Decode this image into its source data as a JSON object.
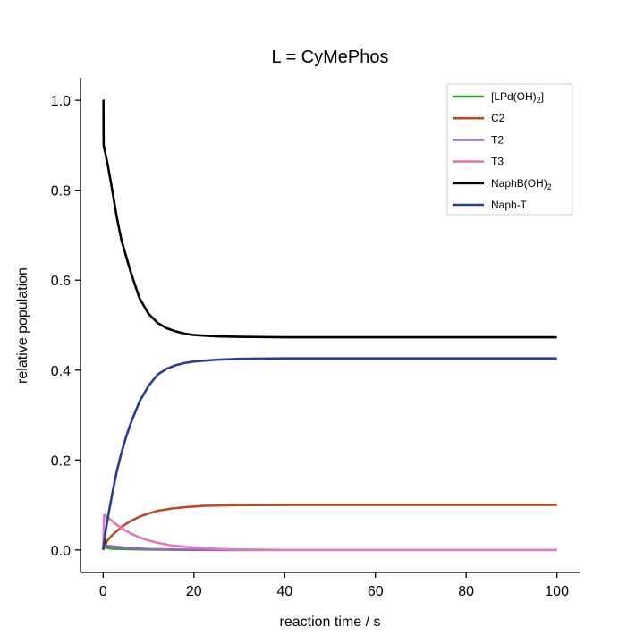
{
  "chart_data": {
    "type": "line",
    "title": "L = CyMePhos",
    "xlabel": "reaction time / s",
    "ylabel": "relative population",
    "xlim": [
      -5,
      105
    ],
    "ylim": [
      -0.05,
      1.05
    ],
    "xticks": [
      0,
      20,
      40,
      60,
      80,
      100
    ],
    "xtick_labels": [
      "0",
      "20",
      "40",
      "60",
      "80",
      "100"
    ],
    "yticks": [
      0.0,
      0.2,
      0.4,
      0.6,
      0.8,
      1.0
    ],
    "ytick_labels": [
      "0.0",
      "0.2",
      "0.4",
      "0.6",
      "0.8",
      "1.0"
    ],
    "grid": false,
    "legend_position": "top-right",
    "series": [
      {
        "name": "[LPd(OH)2]",
        "legend_main": "[LPd(OH)",
        "legend_sub": "2",
        "legend_after": "]",
        "color": "#2ca02c",
        "x": [
          0,
          0.5,
          1,
          2,
          5,
          10,
          20,
          40,
          60,
          80,
          100
        ],
        "y": [
          0.01,
          0.006,
          0.004,
          0.003,
          0.002,
          0.001,
          0.0,
          0.0,
          0.0,
          0.0,
          0.0
        ]
      },
      {
        "name": "C2",
        "legend_main": "C2",
        "legend_sub": "",
        "legend_after": "",
        "color": "#b84c27",
        "x": [
          0,
          0.5,
          1,
          2,
          4,
          6,
          8,
          10,
          12,
          15,
          18,
          22,
          26,
          30,
          40,
          50,
          60,
          80,
          100
        ],
        "y": [
          0.0,
          0.012,
          0.022,
          0.033,
          0.051,
          0.064,
          0.074,
          0.081,
          0.087,
          0.092,
          0.095,
          0.098,
          0.099,
          0.0995,
          0.1,
          0.1,
          0.1,
          0.1,
          0.1
        ]
      },
      {
        "name": "T2",
        "legend_main": "T2",
        "legend_sub": "",
        "legend_after": "",
        "color": "#9467bd",
        "x": [
          0,
          0.3,
          1,
          2,
          4,
          6,
          8,
          10,
          15,
          20,
          30,
          40,
          60,
          80,
          100
        ],
        "y": [
          0.0,
          0.01,
          0.009,
          0.008,
          0.006,
          0.004,
          0.003,
          0.002,
          0.001,
          0.0005,
          0.0,
          0.0,
          0.0,
          0.0,
          0.0
        ]
      },
      {
        "name": "T3",
        "legend_main": "T3",
        "legend_sub": "",
        "legend_after": "",
        "color": "#e377c2",
        "x": [
          0,
          0.2,
          0.5,
          1,
          2,
          3,
          4,
          6,
          8,
          10,
          12,
          15,
          18,
          22,
          26,
          30,
          40,
          60,
          80,
          100
        ],
        "y": [
          0.0,
          0.078,
          0.077,
          0.073,
          0.064,
          0.056,
          0.049,
          0.037,
          0.028,
          0.021,
          0.016,
          0.01,
          0.007,
          0.004,
          0.002,
          0.001,
          0.0,
          0.0,
          0.0,
          0.0
        ]
      },
      {
        "name": "NaphB(OH)2",
        "legend_main": "NaphB(OH)",
        "legend_sub": "2",
        "legend_after": "",
        "color": "#000000",
        "x": [
          0,
          0.05,
          0.1,
          1,
          2,
          3,
          4,
          5,
          6,
          8,
          10,
          12,
          14,
          16,
          18,
          20,
          25,
          30,
          40,
          50,
          60,
          80,
          100
        ],
        "y": [
          1.0,
          1.0,
          0.9,
          0.857,
          0.8,
          0.74,
          0.69,
          0.655,
          0.62,
          0.56,
          0.525,
          0.505,
          0.493,
          0.486,
          0.481,
          0.478,
          0.475,
          0.474,
          0.473,
          0.473,
          0.473,
          0.473,
          0.473
        ]
      },
      {
        "name": "Naph-T",
        "legend_main": "Naph-T",
        "legend_sub": "",
        "legend_after": "",
        "color": "#233f91",
        "x": [
          0,
          0.5,
          1,
          2,
          3,
          4,
          5,
          6,
          8,
          10,
          12,
          14,
          16,
          18,
          20,
          25,
          30,
          40,
          50,
          60,
          80,
          100
        ],
        "y": [
          0.0,
          0.04,
          0.07,
          0.125,
          0.175,
          0.215,
          0.25,
          0.28,
          0.33,
          0.365,
          0.39,
          0.403,
          0.411,
          0.416,
          0.419,
          0.423,
          0.425,
          0.426,
          0.426,
          0.426,
          0.426,
          0.426
        ]
      }
    ]
  }
}
